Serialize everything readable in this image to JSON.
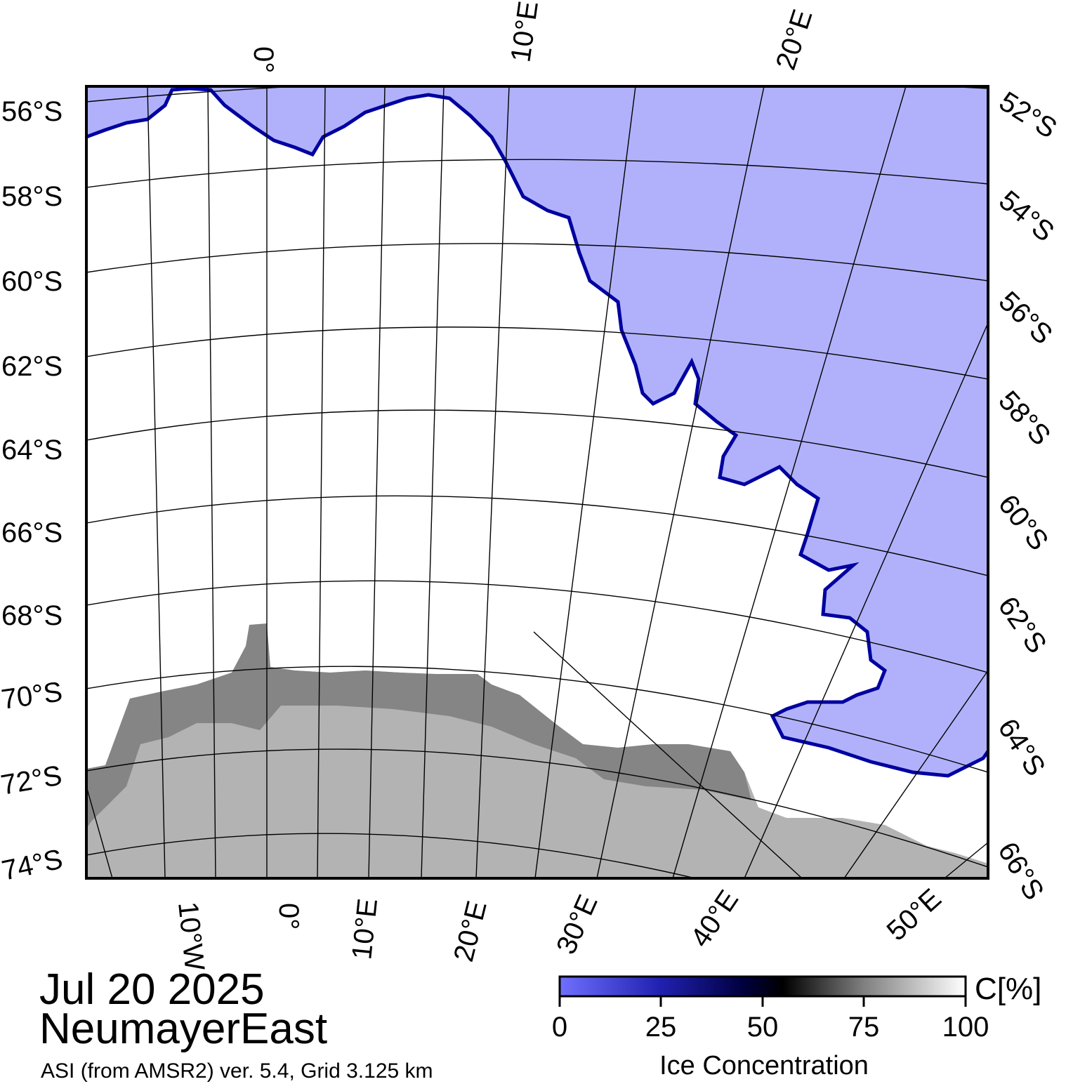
{
  "header": {
    "date": "Jul 20 2025",
    "region": "NeumayerEast",
    "source_note": "ASI (from AMSR2) ver. 5.4,  Grid 3.125 km"
  },
  "map": {
    "top_lon_labels": [
      "0°",
      "10°E",
      "20°E"
    ],
    "bottom_lon_labels": [
      "10°W",
      "0°",
      "10°E",
      "20°E",
      "30°E",
      "40°E",
      "50°E"
    ],
    "left_lat_labels": [
      "56°S",
      "58°S",
      "60°S",
      "62°S",
      "64°S",
      "66°S",
      "68°S",
      "70°S",
      "72°S",
      "74°S"
    ],
    "right_lat_labels": [
      "52°S",
      "54°S",
      "56°S",
      "58°S",
      "60°S",
      "62°S",
      "64°S",
      "66°S"
    ],
    "colors": {
      "open_water": "#b1b1fb",
      "land": "#b3b3b3",
      "ice_shelf": "#858585",
      "sea_ice": "#ffffff",
      "ice_edge": "#0000a0"
    }
  },
  "colorbar": {
    "unit_label": "C[%]",
    "ticks": [
      "0",
      "25",
      "50",
      "75",
      "100"
    ],
    "title": "Ice Concentration",
    "colors": [
      "#8080ff",
      "#000070",
      "#000000",
      "#ffffff"
    ]
  }
}
